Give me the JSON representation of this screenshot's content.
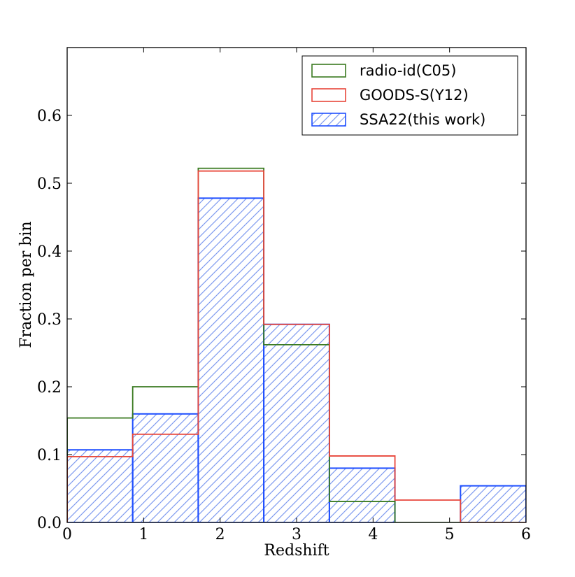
{
  "chart_data": {
    "type": "histogram",
    "xlabel": "Redshift",
    "ylabel": "Fraction per bin",
    "xlim": [
      0,
      6
    ],
    "ylim": [
      0,
      0.7
    ],
    "x_ticks": [
      0,
      1,
      2,
      3,
      4,
      5,
      6
    ],
    "x_tick_labels": [
      "0",
      "1",
      "2",
      "3",
      "4",
      "5",
      "6"
    ],
    "y_ticks": [
      0.0,
      0.1,
      0.2,
      0.3,
      0.4,
      0.5,
      0.6
    ],
    "y_tick_labels": [
      "0.0",
      "0.1",
      "0.2",
      "0.3",
      "0.4",
      "0.5",
      "0.6"
    ],
    "bin_edges": [
      0,
      0.857,
      1.714,
      2.571,
      3.429,
      4.286,
      5.143,
      6.0
    ],
    "legend_position": "top-right",
    "series": [
      {
        "name": "radio-id(C05)",
        "color": "#3a7a20",
        "style": "step-outline",
        "values": [
          0.154,
          0.2,
          0.522,
          0.262,
          0.031,
          0.0,
          0.0
        ]
      },
      {
        "name": "GOODS-S(Y12)",
        "color": "#e8463a",
        "style": "step-outline",
        "values": [
          0.097,
          0.13,
          0.518,
          0.292,
          0.098,
          0.033,
          0.0
        ]
      },
      {
        "name": "SSA22(this work)",
        "color": "#1f4fff",
        "hatch_color": "#7f9bef",
        "style": "hatched-bars",
        "values": [
          0.107,
          0.16,
          0.478,
          0.292,
          0.08,
          0.0,
          0.054
        ]
      }
    ]
  }
}
